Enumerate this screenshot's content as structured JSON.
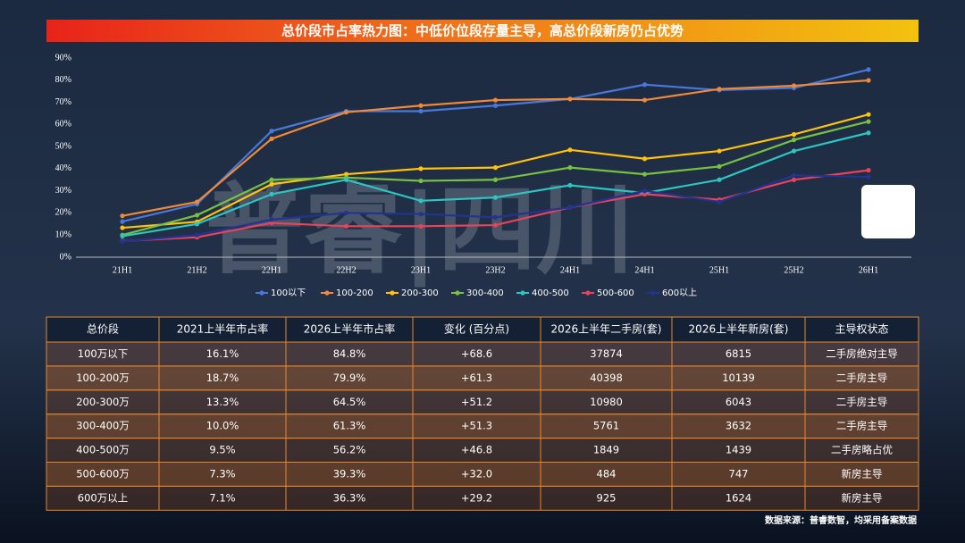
{
  "title": "总价段市占率热力图：中低价位段存量主导，高总价段新房仍占优势",
  "watermark": "普睿|四川",
  "chart_data": {
    "type": "line",
    "categories": [
      "21H1",
      "21H2",
      "22H1",
      "22H2",
      "23H1",
      "23H2",
      "24H1",
      "24H1",
      "25H1",
      "25H2",
      "26H1"
    ],
    "ylim": [
      0,
      90
    ],
    "yticks": [
      {
        "value": 0,
        "label": "0%"
      },
      {
        "value": 10,
        "label": "10%"
      },
      {
        "value": 20,
        "label": "20%"
      },
      {
        "value": 30,
        "label": "30%"
      },
      {
        "value": 40,
        "label": "40%"
      },
      {
        "value": 50,
        "label": "50%"
      },
      {
        "value": 60,
        "label": "60%"
      },
      {
        "value": 70,
        "label": "70%"
      },
      {
        "value": 80,
        "label": "80%"
      },
      {
        "value": 90,
        "label": "90%"
      }
    ],
    "series": [
      {
        "name": "100以下",
        "color": "#4a78d8",
        "values": [
          16.1,
          24,
          57,
          66,
          66,
          68.5,
          71.5,
          78,
          75.5,
          76.5,
          84.8
        ]
      },
      {
        "name": "100-200",
        "color": "#f08a3a",
        "values": [
          18.7,
          25,
          53.5,
          65.5,
          68.5,
          71,
          71.5,
          71,
          76,
          77.5,
          79.9
        ]
      },
      {
        "name": "200-300",
        "color": "#ffc20e",
        "values": [
          13.3,
          16,
          33,
          37.5,
          40,
          40.5,
          48.5,
          44.5,
          48,
          55.5,
          64.5
        ]
      },
      {
        "name": "300-400",
        "color": "#78c043",
        "values": [
          10.0,
          19,
          35,
          36,
          34.5,
          35,
          40.5,
          37.5,
          41,
          53,
          61.3
        ]
      },
      {
        "name": "400-500",
        "color": "#2ec4c0",
        "values": [
          9.5,
          15,
          28.5,
          35,
          25.5,
          27,
          32.5,
          29,
          35,
          48,
          56.2
        ]
      },
      {
        "name": "500-600",
        "color": "#e8435a",
        "values": [
          7.3,
          9,
          15.5,
          14,
          14,
          14.5,
          22.5,
          28.5,
          26,
          35,
          39.3
        ]
      },
      {
        "name": "600以上",
        "color": "#22348f",
        "values": [
          7.1,
          10,
          17,
          20,
          19.5,
          18,
          22.5,
          30,
          25,
          37,
          36.3
        ]
      }
    ]
  },
  "table": {
    "header": [
      "总价段",
      "2021上半年市占率",
      "2026上半年市占率",
      "变化 (百分点)",
      "2026上半年二手房(套)",
      "2026上半年新房(套)",
      "主导权状态"
    ],
    "rows": [
      [
        "100万以下",
        "16.1%",
        "84.8%",
        "+68.6",
        "37874",
        "6815",
        "二手房绝对主导"
      ],
      [
        "100-200万",
        "18.7%",
        "79.9%",
        "+61.3",
        "40398",
        "10139",
        "二手房主导"
      ],
      [
        "200-300万",
        "13.3%",
        "64.5%",
        "+51.2",
        "10980",
        "6043",
        "二手房主导"
      ],
      [
        "300-400万",
        "10.0%",
        "61.3%",
        "+51.3",
        "5761",
        "3632",
        "二手房主导"
      ],
      [
        "400-500万",
        "9.5%",
        "56.2%",
        "+46.8",
        "1849",
        "1439",
        "二手房略占优"
      ],
      [
        "500-600万",
        "7.3%",
        "39.3%",
        "+32.0",
        "484",
        "747",
        "新房主导"
      ],
      [
        "600万以上",
        "7.1%",
        "36.3%",
        "+29.2",
        "925",
        "1624",
        "新房主导"
      ]
    ]
  },
  "source": "数据来源：普睿数智，均采用备案数据"
}
